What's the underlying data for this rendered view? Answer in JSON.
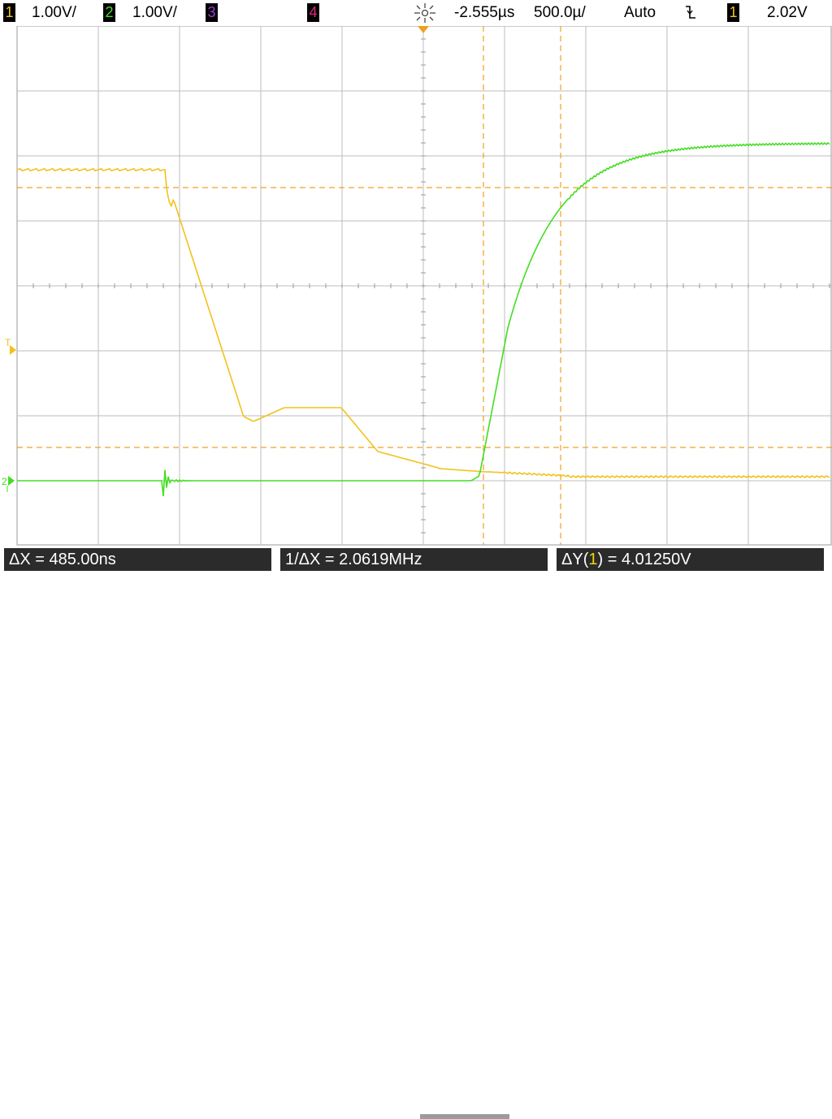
{
  "colors": {
    "ch1": "#f2c21c",
    "ch2": "#44dd22",
    "ch3": "#9b3bd9",
    "ch4": "#e3247a",
    "cursor": "#f0a020",
    "grid": "#bdbdbd",
    "measure_bg": "#2b2b2b"
  },
  "topbar": {
    "ch1_num": "1",
    "ch1_scale": "1.00V/",
    "ch2_num": "2",
    "ch2_scale": "1.00V/",
    "ch3_num": "3",
    "ch4_num": "4",
    "run_icon": "acquisition-run-icon",
    "time_offset": "-2.555µs",
    "timebase": "500.0µ/",
    "trigger_mode": "Auto",
    "trigger_slope_icon": "falling-edge-icon",
    "trigger_source": "1",
    "trigger_level": "2.02V"
  },
  "markers": {
    "trigger_marker": "T",
    "ch2_ground_marker": "2"
  },
  "measurements": {
    "delta_x": "ΔX = 485.00ns",
    "inverse_delta_x": "1/ΔX = 2.0619MHz",
    "delta_y_prefix": "ΔY(",
    "delta_y_channel": "1",
    "delta_y_suffix": ") = 4.01250V"
  }
}
